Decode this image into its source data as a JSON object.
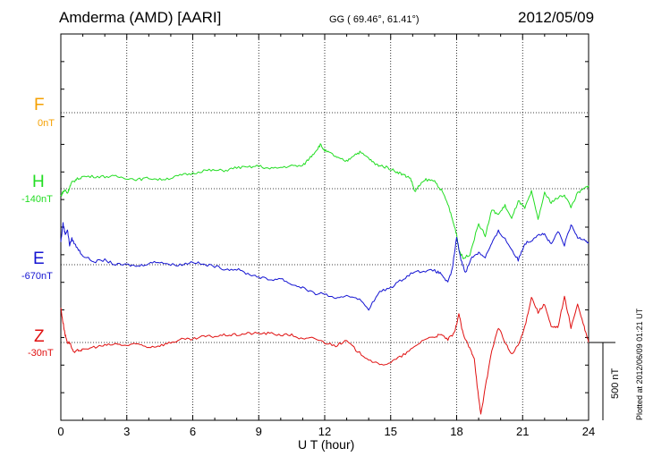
{
  "header": {
    "station": "Amderma (AMD)  [AARI]",
    "coords": "GG ( 69.46°,  61.41°)",
    "date": "2012/05/09"
  },
  "plotted_note": "Plotted at 2012/06/09 01:21  UT",
  "scale_label": "500 nT",
  "chart_data": {
    "type": "line",
    "xlabel": "U T (hour)",
    "xlim": [
      0,
      24
    ],
    "xticks": [
      "0",
      "3",
      "6",
      "9",
      "12",
      "15",
      "18",
      "21",
      "24"
    ],
    "scale_bar_nT": 500,
    "channels": [
      {
        "name": "F",
        "baseline": "0nT",
        "color": "#f5a000",
        "values": []
      },
      {
        "name": "H",
        "baseline": "-140nT",
        "color": "#22dd22",
        "x": [
          0,
          0.1,
          0.2,
          0.3,
          0.4,
          0.5,
          0.7,
          1.0,
          1.5,
          2.0,
          2.5,
          3.0,
          3.5,
          4.0,
          4.5,
          5.0,
          5.5,
          6.0,
          6.5,
          7.0,
          7.5,
          8.0,
          8.5,
          9.0,
          9.5,
          10.0,
          10.5,
          11.0,
          11.3,
          11.6,
          11.8,
          12.0,
          12.3,
          12.6,
          13.0,
          13.3,
          13.6,
          14.0,
          14.3,
          14.6,
          15.0,
          15.3,
          15.6,
          15.9,
          16.1,
          16.3,
          16.6,
          17.0,
          17.3,
          17.6,
          17.8,
          18.0,
          18.1,
          18.3,
          18.6,
          19.0,
          19.3,
          19.6,
          19.9,
          20.2,
          20.5,
          20.8,
          21.1,
          21.4,
          21.7,
          22.0,
          22.3,
          22.6,
          22.9,
          23.2,
          23.5,
          23.8,
          24.0
        ],
        "values": [
          -50,
          -20,
          -10,
          -30,
          10,
          40,
          60,
          80,
          80,
          80,
          80,
          70,
          60,
          70,
          60,
          70,
          90,
          100,
          120,
          120,
          120,
          140,
          140,
          150,
          130,
          140,
          150,
          150,
          200,
          250,
          290,
          250,
          230,
          200,
          180,
          220,
          240,
          200,
          160,
          150,
          130,
          110,
          90,
          70,
          -20,
          20,
          60,
          50,
          -10,
          -100,
          -200,
          -300,
          -400,
          -460,
          -430,
          -230,
          -310,
          -140,
          -170,
          -110,
          -200,
          -80,
          -130,
          -20,
          -200,
          -30,
          -90,
          -60,
          -40,
          -120,
          -30,
          0,
          20
        ]
      },
      {
        "name": "E",
        "baseline": "-670nT",
        "color": "#1414d2",
        "x": [
          0,
          0.1,
          0.2,
          0.3,
          0.4,
          0.5,
          0.7,
          1.0,
          1.5,
          2.0,
          2.5,
          3.0,
          3.5,
          4.0,
          4.5,
          5.0,
          5.5,
          6.0,
          6.5,
          7.0,
          7.5,
          8.0,
          8.5,
          9.0,
          9.5,
          10.0,
          10.5,
          11.0,
          11.5,
          12.0,
          12.5,
          13.0,
          13.5,
          14.0,
          14.5,
          15.0,
          15.5,
          16.0,
          16.5,
          17.0,
          17.3,
          17.6,
          17.8,
          18.0,
          18.2,
          18.4,
          18.7,
          19.0,
          19.3,
          19.6,
          19.9,
          20.2,
          20.5,
          20.8,
          21.1,
          21.4,
          21.7,
          22.0,
          22.3,
          22.6,
          22.9,
          23.2,
          23.5,
          23.8,
          24.0
        ],
        "values": [
          150,
          270,
          200,
          230,
          130,
          170,
          120,
          60,
          20,
          30,
          0,
          0,
          -10,
          10,
          20,
          0,
          0,
          20,
          0,
          -10,
          -30,
          -30,
          -60,
          -80,
          -100,
          -90,
          -130,
          -150,
          -190,
          -190,
          -230,
          -200,
          -220,
          -290,
          -180,
          -150,
          -100,
          -50,
          -40,
          -40,
          -60,
          -120,
          -30,
          180,
          30,
          -50,
          50,
          80,
          50,
          140,
          220,
          170,
          100,
          30,
          140,
          160,
          200,
          200,
          130,
          220,
          130,
          260,
          180,
          170,
          140
        ]
      },
      {
        "name": "Z",
        "baseline": "-30nT",
        "color": "#e01010",
        "x": [
          0,
          0.1,
          0.2,
          0.3,
          0.4,
          0.6,
          0.8,
          1.0,
          1.5,
          2.0,
          2.5,
          3.0,
          3.5,
          4.0,
          4.5,
          5.0,
          5.5,
          6.0,
          6.5,
          7.0,
          7.5,
          8.0,
          8.5,
          9.0,
          9.5,
          10.0,
          10.5,
          11.0,
          11.5,
          12.0,
          12.5,
          13.0,
          13.5,
          14.0,
          14.5,
          15.0,
          15.5,
          16.0,
          16.5,
          17.0,
          17.3,
          17.6,
          17.9,
          18.1,
          18.3,
          18.6,
          18.8,
          19.0,
          19.1,
          19.3,
          19.6,
          19.9,
          20.2,
          20.5,
          20.8,
          21.1,
          21.4,
          21.7,
          22.0,
          22.3,
          22.6,
          22.9,
          23.2,
          23.5,
          23.8,
          24.0
        ],
        "values": [
          230,
          130,
          50,
          0,
          0,
          -70,
          -50,
          -50,
          -30,
          -20,
          -10,
          -20,
          -10,
          -30,
          -20,
          0,
          20,
          20,
          40,
          40,
          50,
          50,
          60,
          60,
          60,
          50,
          50,
          20,
          30,
          0,
          -20,
          10,
          -60,
          -110,
          -150,
          -130,
          -90,
          -40,
          20,
          40,
          50,
          20,
          60,
          190,
          50,
          -40,
          -100,
          -370,
          -470,
          -300,
          -50,
          100,
          0,
          -80,
          -20,
          100,
          300,
          200,
          250,
          100,
          100,
          300,
          100,
          250,
          100,
          0
        ]
      }
    ]
  }
}
